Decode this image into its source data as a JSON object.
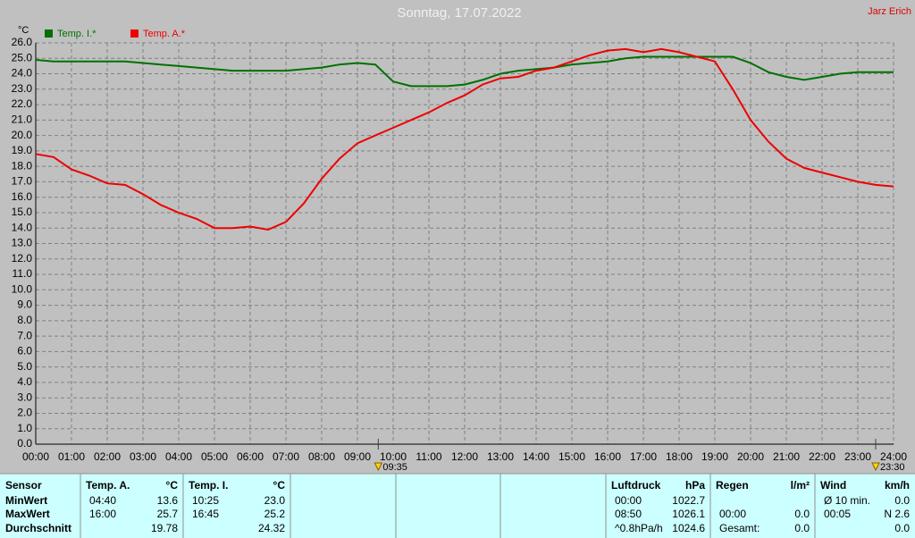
{
  "chart_data": {
    "type": "line",
    "title": "Sonntag, 17.07.2022",
    "author": "Jarz Erich",
    "y_label": "°C",
    "legend": "top-left",
    "grid": true,
    "x": [
      0,
      0.5,
      1,
      1.5,
      2,
      2.5,
      3,
      3.5,
      4,
      4.5,
      5,
      5.5,
      6,
      6.5,
      7,
      7.5,
      8,
      8.5,
      9,
      9.5,
      10,
      10.5,
      11,
      11.5,
      12,
      12.5,
      13,
      13.5,
      14,
      14.5,
      15,
      15.5,
      16,
      16.5,
      17,
      17.5,
      18,
      18.5,
      19,
      19.5,
      20,
      20.5,
      21,
      21.5,
      22,
      22.5,
      23,
      23.5,
      24
    ],
    "series": [
      {
        "name": "Temp. I.*",
        "color": "#007000",
        "values": [
          24.9,
          24.8,
          24.8,
          24.8,
          24.8,
          24.8,
          24.7,
          24.6,
          24.5,
          24.4,
          24.3,
          24.2,
          24.2,
          24.2,
          24.2,
          24.3,
          24.4,
          24.6,
          24.7,
          24.6,
          23.5,
          23.2,
          23.2,
          23.2,
          23.3,
          23.6,
          24.0,
          24.2,
          24.3,
          24.4,
          24.6,
          24.7,
          24.8,
          25.0,
          25.1,
          25.1,
          25.1,
          25.1,
          25.1,
          25.1,
          24.7,
          24.1,
          23.8,
          23.6,
          23.8,
          24.0,
          24.1,
          24.1,
          24.1
        ]
      },
      {
        "name": "Temp. A.*",
        "color": "#ee0000",
        "values": [
          18.8,
          18.6,
          17.8,
          17.4,
          16.9,
          16.8,
          16.2,
          15.5,
          15.0,
          14.6,
          14.0,
          14.0,
          14.1,
          13.9,
          14.4,
          15.6,
          17.2,
          18.5,
          19.5,
          20.0,
          20.5,
          21.0,
          21.5,
          22.1,
          22.6,
          23.3,
          23.7,
          23.8,
          24.2,
          24.4,
          24.8,
          25.2,
          25.5,
          25.6,
          25.4,
          25.6,
          25.4,
          25.1,
          24.8,
          23.0,
          21.0,
          19.6,
          18.5,
          17.9,
          17.6,
          17.3,
          17.0,
          16.8,
          16.7
        ]
      }
    ],
    "xlim": [
      0,
      24
    ],
    "xticks": [
      {
        "value": 0,
        "label": "00:00"
      },
      {
        "value": 1,
        "label": "01:00"
      },
      {
        "value": 2,
        "label": "02:00"
      },
      {
        "value": 3,
        "label": "03:00"
      },
      {
        "value": 4,
        "label": "04:00"
      },
      {
        "value": 5,
        "label": "05:00"
      },
      {
        "value": 6,
        "label": "06:00"
      },
      {
        "value": 7,
        "label": "07:00"
      },
      {
        "value": 8,
        "label": "08:00"
      },
      {
        "value": 9,
        "label": "09:00"
      },
      {
        "value": 10,
        "label": "10:00"
      },
      {
        "value": 11,
        "label": "11:00"
      },
      {
        "value": 12,
        "label": "12:00"
      },
      {
        "value": 13,
        "label": "13:00"
      },
      {
        "value": 14,
        "label": "14:00"
      },
      {
        "value": 15,
        "label": "15:00"
      },
      {
        "value": 16,
        "label": "16:00"
      },
      {
        "value": 17,
        "label": "17:00"
      },
      {
        "value": 18,
        "label": "18:00"
      },
      {
        "value": 19,
        "label": "19:00"
      },
      {
        "value": 20,
        "label": "20:00"
      },
      {
        "value": 21,
        "label": "21:00"
      },
      {
        "value": 22,
        "label": "22:00"
      },
      {
        "value": 23,
        "label": "23:00"
      },
      {
        "value": 24,
        "label": "24:00"
      }
    ],
    "ylim": [
      0,
      26
    ],
    "yticks": [
      {
        "value": 0,
        "label": "0.0"
      },
      {
        "value": 1,
        "label": "1.0"
      },
      {
        "value": 2,
        "label": "2.0"
      },
      {
        "value": 3,
        "label": "3.0"
      },
      {
        "value": 4,
        "label": "4.0"
      },
      {
        "value": 5,
        "label": "5.0"
      },
      {
        "value": 6,
        "label": "6.0"
      },
      {
        "value": 7,
        "label": "7.0"
      },
      {
        "value": 8,
        "label": "8.0"
      },
      {
        "value": 9,
        "label": "9.0"
      },
      {
        "value": 10,
        "label": "10.0"
      },
      {
        "value": 11,
        "label": "11.0"
      },
      {
        "value": 12,
        "label": "12.0"
      },
      {
        "value": 13,
        "label": "13.0"
      },
      {
        "value": 14,
        "label": "14.0"
      },
      {
        "value": 15,
        "label": "15.0"
      },
      {
        "value": 16,
        "label": "16.0"
      },
      {
        "value": 17,
        "label": "17.0"
      },
      {
        "value": 18,
        "label": "18.0"
      },
      {
        "value": 19,
        "label": "19.0"
      },
      {
        "value": 20,
        "label": "20.0"
      },
      {
        "value": 21,
        "label": "21.0"
      },
      {
        "value": 22,
        "label": "22.0"
      },
      {
        "value": 23,
        "label": "23.0"
      },
      {
        "value": 24,
        "label": "24.0"
      },
      {
        "value": 25,
        "label": "25.0"
      },
      {
        "value": 26,
        "label": "26.0"
      }
    ],
    "annotations": [
      {
        "x": 9.5833,
        "label": "09:35"
      },
      {
        "x": 23.5,
        "label": "23:30"
      }
    ]
  },
  "table": {
    "columns": [
      {
        "header": [
          "Sensor",
          null
        ],
        "rows": [
          [
            "MinWert",
            null
          ],
          [
            "MaxWert",
            null
          ],
          [
            "Durchschnitt",
            null
          ]
        ]
      },
      {
        "header": [
          "Temp. A.",
          "°C"
        ],
        "rows": [
          [
            "04:40",
            "13.6"
          ],
          [
            "16:00",
            "25.7"
          ],
          [
            null,
            "19.78"
          ]
        ]
      },
      {
        "header": [
          "Temp. I.",
          "°C"
        ],
        "rows": [
          [
            "10:25",
            "23.0"
          ],
          [
            "16:45",
            "25.2"
          ],
          [
            null,
            "24.32"
          ]
        ]
      },
      {
        "header": [
          null,
          null
        ],
        "rows": []
      },
      {
        "header": [
          null,
          null
        ],
        "rows": []
      },
      {
        "header": [
          null,
          null
        ],
        "rows": []
      },
      {
        "header": [
          "Luftdruck",
          "hPa"
        ],
        "rows": [
          [
            "00:00",
            "1022.7"
          ],
          [
            "08:50",
            "1026.1"
          ],
          [
            "^0.8hPa/h",
            "1024.6"
          ]
        ]
      },
      {
        "header": [
          "Regen",
          "l/m²"
        ],
        "rows": [
          [
            null,
            null
          ],
          [
            "00:00",
            "0.0"
          ],
          [
            "Gesamt:",
            "0.0"
          ]
        ]
      },
      {
        "header": [
          "Wind",
          "km/h"
        ],
        "rows": [
          [
            "Ø 10 min.",
            "0.0"
          ],
          [
            "00:05",
            "N 2.6"
          ],
          [
            null,
            "0.0"
          ]
        ]
      }
    ]
  }
}
